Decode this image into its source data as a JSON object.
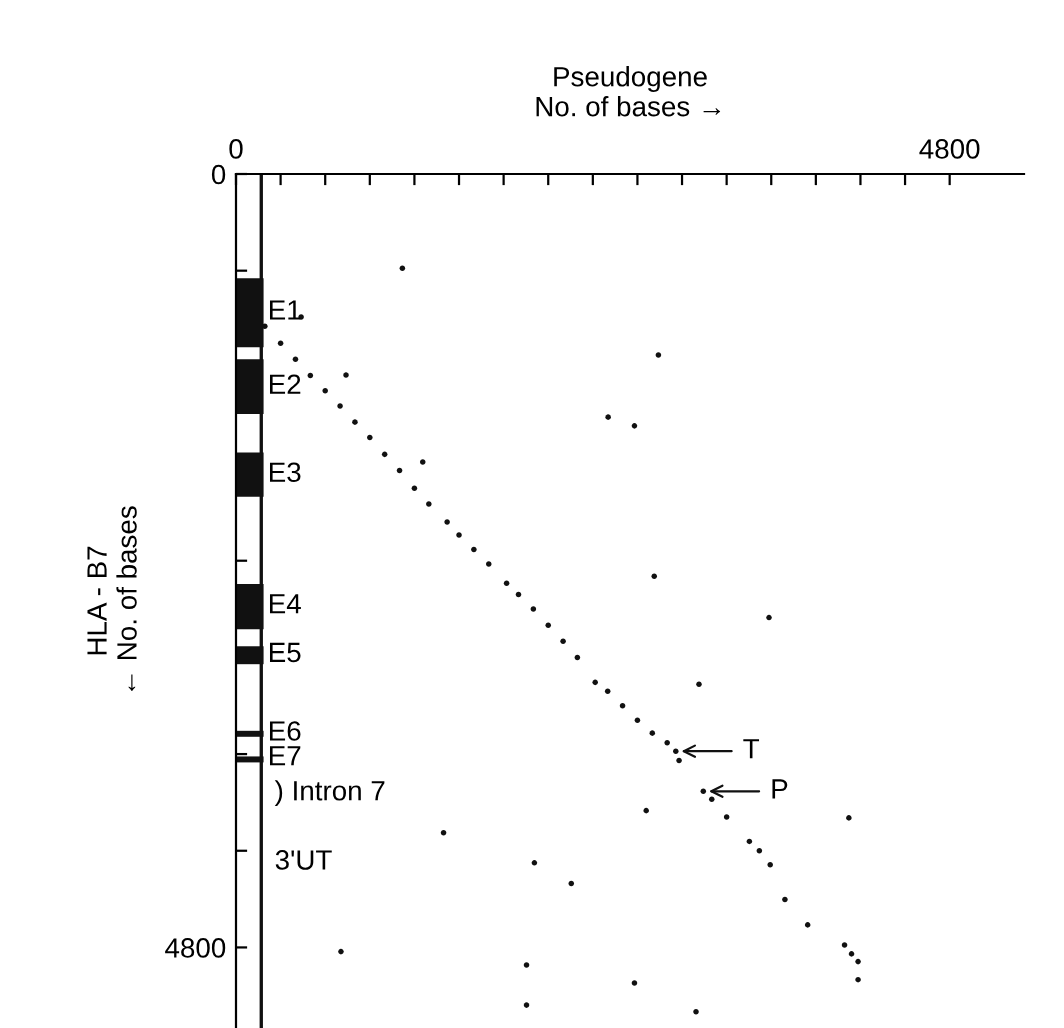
{
  "chart_data": {
    "type": "scatter",
    "xlabel": "Pseudogene\nNo. of bases →",
    "ylabel": "HLA - B7\n← No. of bases",
    "xlim": [
      0,
      5300
    ],
    "ylim": [
      5300,
      0
    ],
    "xticks": [
      0,
      {
        "value": 300,
        "label": null
      },
      {
        "value": 600,
        "label": null
      },
      {
        "value": 900,
        "label": null
      },
      {
        "value": 1200,
        "label": null
      },
      {
        "value": 1500,
        "label": null
      },
      {
        "value": 1800,
        "label": null
      },
      {
        "value": 2100,
        "label": null
      },
      {
        "value": 2400,
        "label": null
      },
      {
        "value": 2700,
        "label": null
      },
      {
        "value": 3000,
        "label": null
      },
      {
        "value": 3300,
        "label": null
      },
      {
        "value": 3600,
        "label": null
      },
      {
        "value": 3900,
        "label": null
      },
      {
        "value": 4200,
        "label": null
      },
      {
        "value": 4500,
        "label": null
      },
      4800
    ],
    "yticks": [
      0,
      {
        "value": 600,
        "label": null
      },
      {
        "value": 1200,
        "label": null
      },
      {
        "value": 1800,
        "label": null
      },
      {
        "value": 2400,
        "label": null
      },
      {
        "value": 3000,
        "label": null
      },
      {
        "value": 3600,
        "label": null
      },
      {
        "value": 4200,
        "label": null
      },
      4800
    ],
    "marker": "circle",
    "grid": false,
    "series": [
      {
        "color": "#111111",
        "x": [
          194,
          300,
          400,
          500,
          600,
          700,
          800,
          900,
          1000,
          1100,
          1200,
          1297,
          1420,
          1500,
          1600,
          1700,
          1820,
          1900,
          2000,
          2100,
          2200,
          2296,
          2416,
          2500,
          2600,
          2700,
          2800,
          2900,
          2958,
          2980,
          3143,
          3200,
          3300,
          3453,
          3520,
          3593,
          3692,
          3845,
          4093,
          4140,
          4184,
          1119,
          438,
          740,
          1256,
          2503,
          2680,
          2813,
          3585,
          3114,
          2841,
          2759,
          1396,
          2007,
          2255,
          706,
          1954,
          2680,
          1954,
          3094,
          4184,
          4122
        ],
        "values": [
          945,
          1050,
          1150,
          1250,
          1345,
          1440,
          1540,
          1635,
          1740,
          1840,
          1950,
          2048,
          2160,
          2240,
          2330,
          2420,
          2540,
          2610,
          2700,
          2800,
          2900,
          3001,
          3155,
          3210,
          3300,
          3390,
          3470,
          3530,
          3582,
          3640,
          3831,
          3880,
          3990,
          4142,
          4200,
          4287,
          4502,
          4660,
          4785,
          4840,
          4888,
          585,
          887,
          1248,
          1787,
          1509,
          1563,
          2496,
          2753,
          3167,
          1123,
          3951,
          4088,
          4275,
          4403,
          4826,
          4909,
          5021,
          5158,
          5199,
          5000,
          3996
        ]
      }
    ],
    "ref_lines": [
      {
        "axis": "x",
        "value": 170,
        "color": "#111111"
      }
    ],
    "annotations": [
      {
        "text": "T",
        "x": 2958,
        "y": 3582
      },
      {
        "text": "P",
        "x": 3143,
        "y": 3831
      },
      "E1",
      "E2",
      "E3",
      "E4",
      "E5",
      "E6",
      "E7",
      ") Intron 7",
      "3'UT"
    ]
  }
}
